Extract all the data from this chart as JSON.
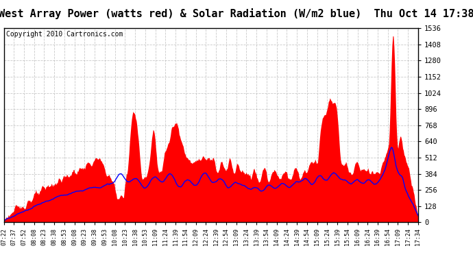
{
  "title": "West Array Power (watts red) & Solar Radiation (W/m2 blue)  Thu Oct 14 17:38",
  "copyright": "Copyright 2010 Cartronics.com",
  "y_min": 0.0,
  "y_max": 1536.0,
  "y_ticks": [
    0.0,
    128.0,
    256.0,
    384.0,
    512.0,
    640.0,
    768.0,
    896.0,
    1024.0,
    1152.0,
    1280.0,
    1408.0,
    1536.0
  ],
  "x_labels": [
    "07:22",
    "07:37",
    "07:52",
    "08:08",
    "08:23",
    "08:38",
    "08:53",
    "09:08",
    "09:23",
    "09:38",
    "09:53",
    "10:08",
    "10:23",
    "10:38",
    "10:53",
    "11:09",
    "11:24",
    "11:39",
    "11:54",
    "12:09",
    "12:24",
    "12:39",
    "12:54",
    "13:09",
    "13:24",
    "13:39",
    "13:54",
    "14:09",
    "14:24",
    "14:39",
    "14:54",
    "15:09",
    "15:24",
    "15:39",
    "15:54",
    "16:09",
    "16:24",
    "16:39",
    "16:54",
    "17:09",
    "17:24",
    "17:34"
  ],
  "background_color": "#ffffff",
  "plot_bg_color": "#ffffff",
  "fill_color": "#ff0000",
  "line_color": "#0000ff",
  "grid_color": "#bbbbbb",
  "title_bg": "#cccccc",
  "title_fontsize": 11,
  "copyright_fontsize": 7
}
